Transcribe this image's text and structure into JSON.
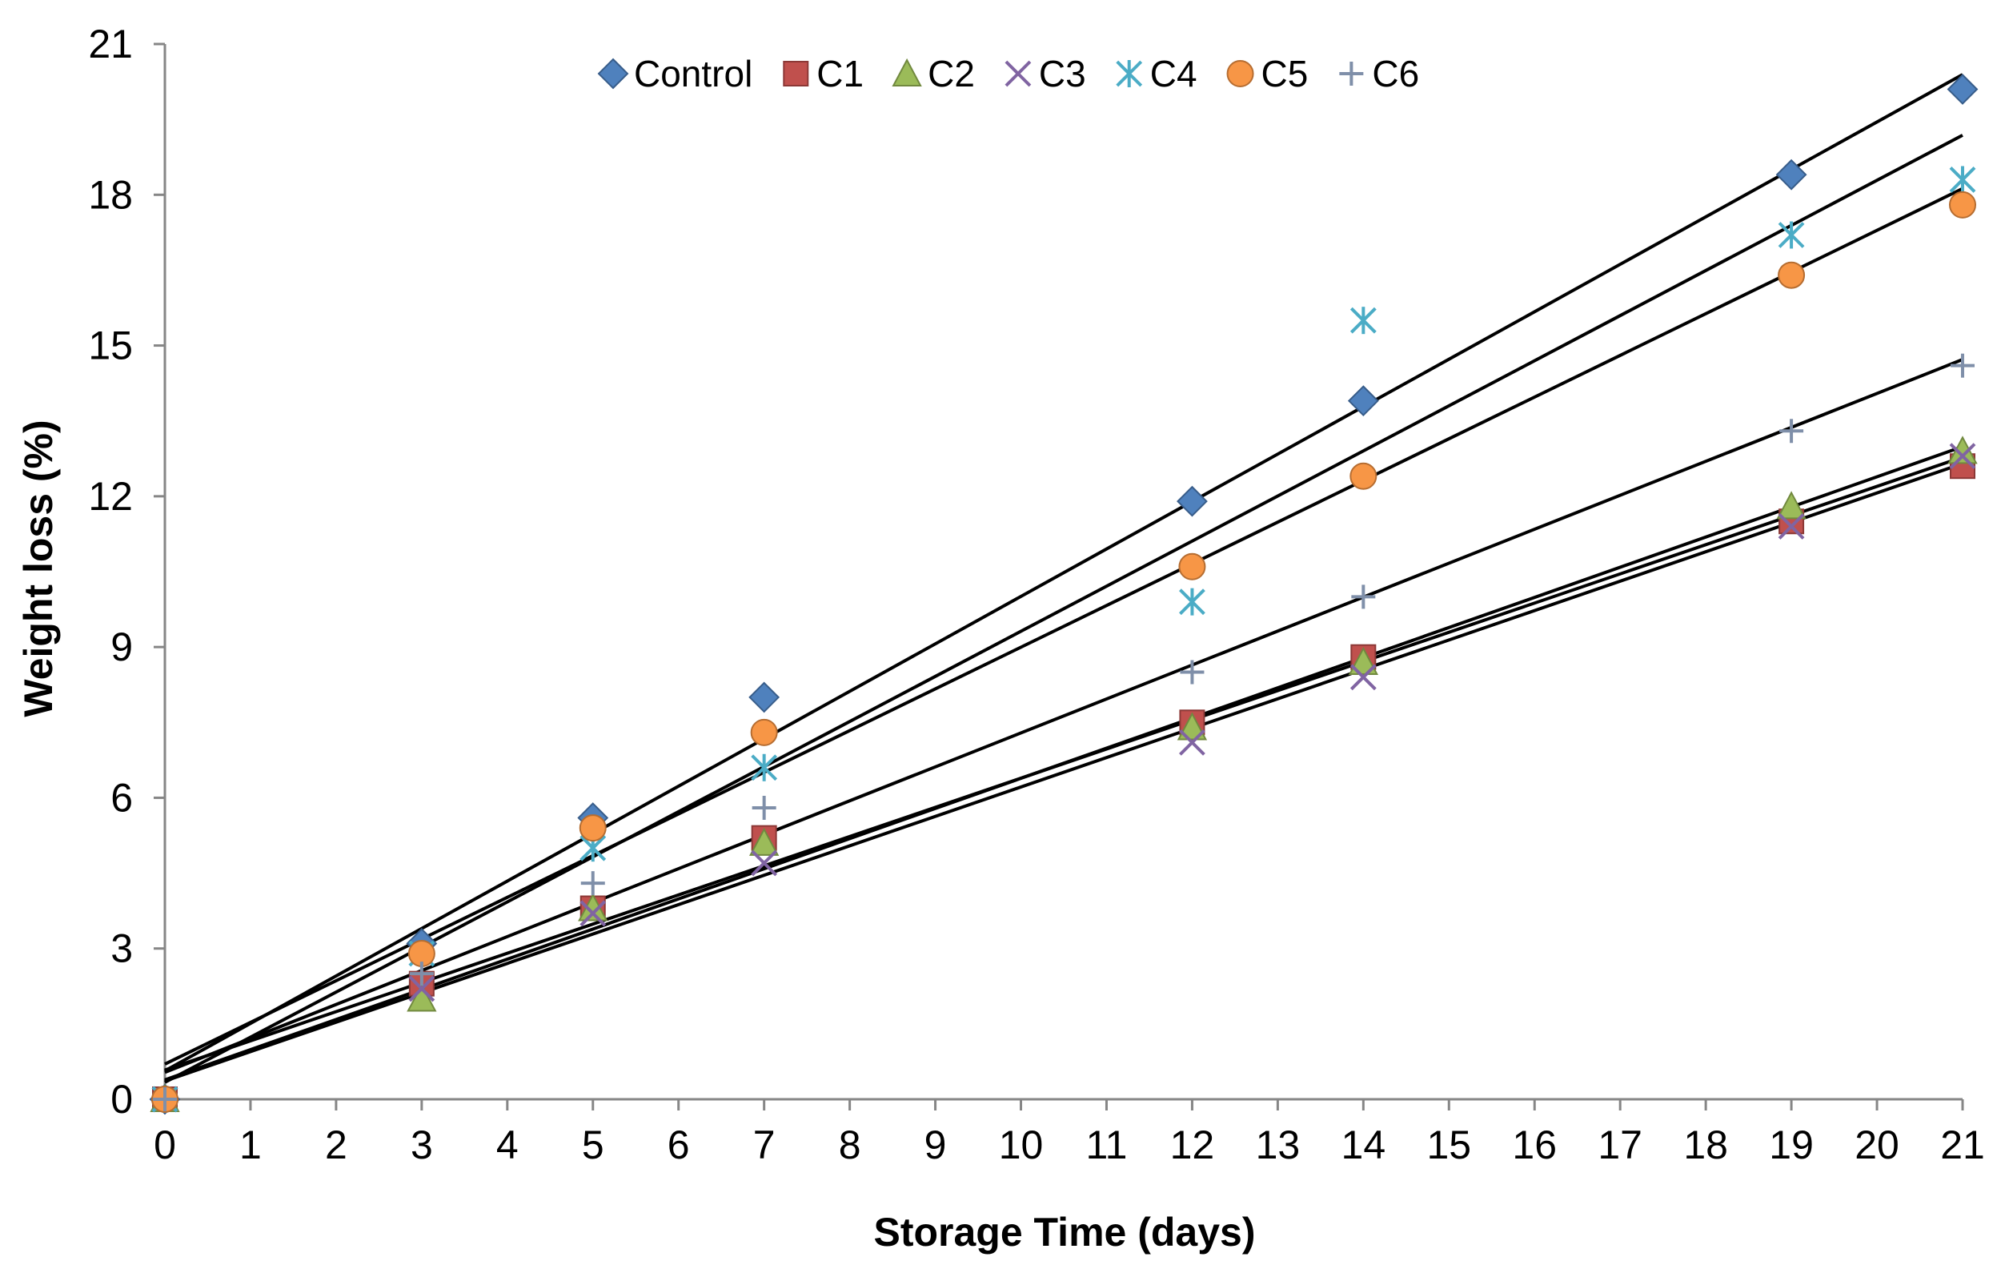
{
  "chart_data": {
    "type": "scatter",
    "title": "",
    "xlabel": "Storage Time (days)",
    "ylabel": "Weight loss  (%)",
    "xlim": [
      0,
      21
    ],
    "ylim": [
      0,
      21
    ],
    "xticks": [
      0,
      1,
      2,
      3,
      4,
      5,
      6,
      7,
      8,
      9,
      10,
      11,
      12,
      13,
      14,
      15,
      16,
      17,
      18,
      19,
      20,
      21
    ],
    "yticks": [
      0,
      3,
      6,
      9,
      12,
      15,
      18,
      21
    ],
    "grid": false,
    "legend_position": "top-center",
    "trendline": "linear",
    "x": [
      0,
      3,
      5,
      7,
      12,
      14,
      19,
      21
    ],
    "series": [
      {
        "name": "Control",
        "marker": "diamond",
        "color": "#4F81BD",
        "values": [
          0,
          3.1,
          5.6,
          8.0,
          11.9,
          13.9,
          18.4,
          20.1
        ]
      },
      {
        "name": "C1",
        "marker": "square",
        "color": "#C0504D",
        "values": [
          0,
          2.3,
          3.8,
          5.2,
          7.5,
          8.8,
          11.5,
          12.6
        ]
      },
      {
        "name": "C2",
        "marker": "triangle",
        "color": "#9BBB59",
        "values": [
          0,
          2.0,
          3.8,
          5.1,
          7.4,
          8.7,
          11.8,
          12.9
        ]
      },
      {
        "name": "C3",
        "marker": "x",
        "color": "#8064A2",
        "values": [
          0,
          2.2,
          3.7,
          4.7,
          7.1,
          8.4,
          11.4,
          12.8
        ]
      },
      {
        "name": "C4",
        "marker": "star",
        "color": "#4BACC6",
        "values": [
          0,
          2.9,
          5.0,
          6.6,
          9.9,
          15.5,
          17.2,
          18.3
        ]
      },
      {
        "name": "C5",
        "marker": "circle",
        "color": "#F79646",
        "values": [
          0,
          2.9,
          5.4,
          7.3,
          10.6,
          12.4,
          16.4,
          17.8
        ]
      },
      {
        "name": "C6",
        "marker": "plus",
        "color": "#7F8FA9",
        "values": [
          0,
          2.5,
          4.3,
          5.8,
          8.5,
          10.0,
          13.3,
          14.6
        ]
      }
    ]
  }
}
